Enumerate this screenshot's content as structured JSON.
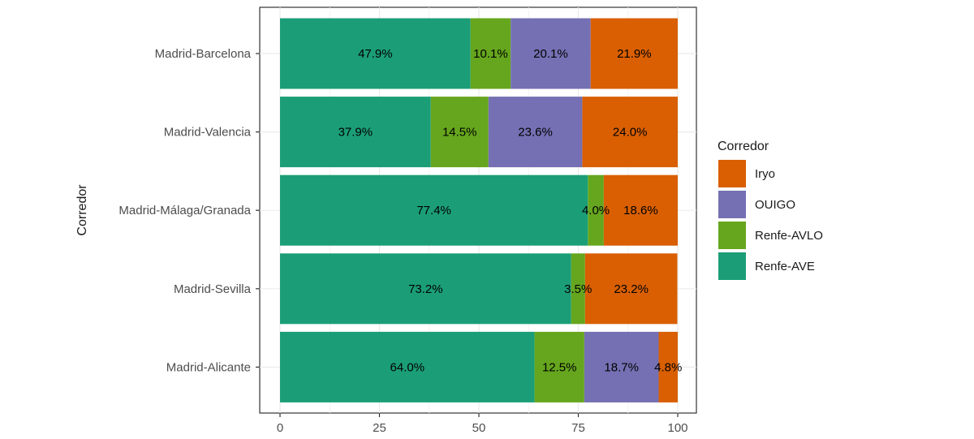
{
  "chart_data": {
    "type": "bar",
    "orientation": "horizontal",
    "stacked": true,
    "title": "",
    "xlabel": "",
    "ylabel": "Corredor",
    "xlim": [
      0,
      100
    ],
    "x_ticks": [
      0,
      25,
      50,
      75,
      100
    ],
    "grid": true,
    "legend_title": "Corredor",
    "legend_position": "right",
    "categories": [
      "Madrid-Barcelona",
      "Madrid-Valencia",
      "Madrid-Málaga/Granada",
      "Madrid-Sevilla",
      "Madrid-Alicante"
    ],
    "series": [
      {
        "name": "Renfe-AVE",
        "color": "#1b9e77",
        "values": [
          47.9,
          37.9,
          77.4,
          73.2,
          64.0
        ],
        "labels": [
          "47.9%",
          "37.9%",
          "77.4%",
          "73.2%",
          "64.0%"
        ]
      },
      {
        "name": "Renfe-AVLO",
        "color": "#66a61e",
        "values": [
          10.1,
          14.5,
          4.0,
          3.5,
          12.5
        ],
        "labels": [
          "10.1%",
          "14.5%",
          "4.0%",
          "3.5%",
          "12.5%"
        ]
      },
      {
        "name": "OUIGO",
        "color": "#7570b3",
        "values": [
          20.1,
          23.6,
          0,
          0,
          18.7
        ],
        "labels": [
          "20.1%",
          "23.6%",
          "",
          "",
          "18.7%"
        ]
      },
      {
        "name": "Iryo",
        "color": "#d95f02",
        "values": [
          21.9,
          24.0,
          18.6,
          23.2,
          4.8
        ],
        "labels": [
          "21.9%",
          "24.0%",
          "18.6%",
          "23.2%",
          "4.8%"
        ]
      }
    ],
    "legend_order": [
      "Iryo",
      "OUIGO",
      "Renfe-AVLO",
      "Renfe-AVE"
    ]
  }
}
